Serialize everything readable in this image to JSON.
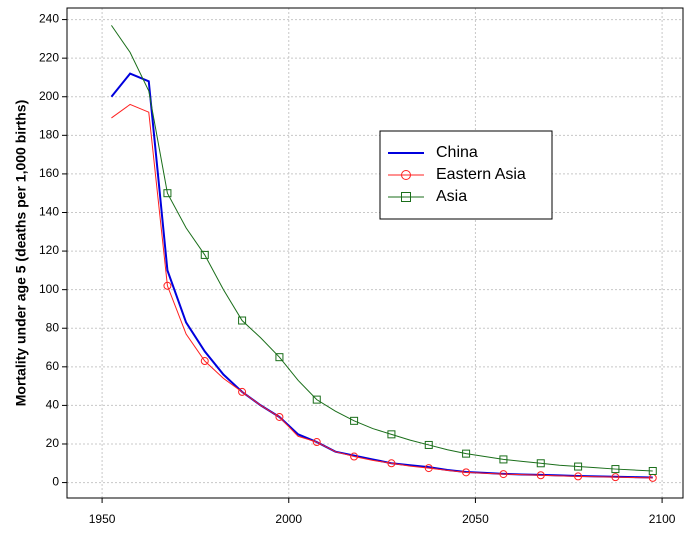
{
  "chart_data": {
    "type": "line",
    "y_label": "Mortality under age 5 (deaths per 1,000 births)",
    "x": [
      1952.5,
      1957.5,
      1962.5,
      1967.5,
      1972.5,
      1977.5,
      1982.5,
      1987.5,
      1992.5,
      1997.5,
      2002.5,
      2007.5,
      2012.5,
      2017.5,
      2022.5,
      2027.5,
      2032.5,
      2037.5,
      2042.5,
      2047.5,
      2052.5,
      2057.5,
      2062.5,
      2067.5,
      2072.5,
      2077.5,
      2082.5,
      2087.5,
      2092.5,
      2097.5
    ],
    "series": [
      {
        "name": "China",
        "color": "#0000dd",
        "marker": "none",
        "values": [
          200,
          212,
          208,
          110,
          83,
          68,
          56,
          47,
          40,
          34,
          25,
          21,
          16,
          14,
          12,
          10,
          9,
          8,
          6.5,
          5.5,
          5,
          4.5,
          4.2,
          4,
          3.7,
          3.4,
          3.2,
          3,
          2.8,
          2.6
        ]
      },
      {
        "name": "Eastern Asia",
        "color": "#ff2020",
        "marker": "circle",
        "values": [
          189,
          196,
          192,
          102,
          77,
          63,
          54,
          47,
          40,
          34,
          24,
          21,
          16,
          13.5,
          11.5,
          10,
          8.5,
          7.5,
          6.3,
          5.3,
          4.8,
          4.4,
          4.1,
          3.8,
          3.5,
          3.2,
          3,
          2.8,
          2.6,
          2.4
        ]
      },
      {
        "name": "Asia",
        "color": "#1a6e1a",
        "marker": "square",
        "values": [
          237,
          223,
          203,
          150,
          132,
          118,
          100,
          84,
          75,
          65,
          53,
          43,
          37,
          32,
          28,
          25,
          22,
          19.5,
          17,
          15,
          13.5,
          12,
          11,
          10,
          9,
          8.3,
          7.7,
          7,
          6.5,
          6
        ]
      }
    ],
    "xlim": [
      1940.6,
      2105.6
    ],
    "xticks": [
      1950,
      2000,
      2050,
      2100
    ],
    "ylim": [
      -8,
      246
    ],
    "yticks": [
      0,
      20,
      40,
      60,
      80,
      100,
      120,
      140,
      160,
      180,
      200,
      220,
      240
    ],
    "grid": true,
    "legend": "upper-right"
  }
}
